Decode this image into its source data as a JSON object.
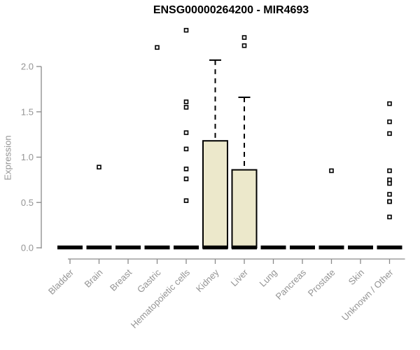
{
  "chart_data": {
    "type": "boxplot",
    "title": "ENSG00000264200 - MIR4693",
    "xlabel": "",
    "ylabel": "Expression",
    "ylim": [
      0,
      2.4
    ],
    "ytick_labels": [
      "0.0",
      "0.5",
      "1.0",
      "1.5",
      "2.0"
    ],
    "ytick_values": [
      0.0,
      0.5,
      1.0,
      1.5,
      2.0
    ],
    "grid": false,
    "legend": false,
    "categories": [
      "Bladder",
      "Brain",
      "Breast",
      "Gastric",
      "Hematopoietic cells",
      "Kidney",
      "Liver",
      "Lung",
      "Pancreas",
      "Prostate",
      "Skin",
      "Unknown / Other"
    ],
    "boxes": [
      {
        "category": "Bladder",
        "median": 0,
        "q1": 0,
        "q3": 0,
        "whisker_low": 0,
        "whisker_high": 0,
        "outliers": []
      },
      {
        "category": "Brain",
        "median": 0,
        "q1": 0,
        "q3": 0,
        "whisker_low": 0,
        "whisker_high": 0,
        "outliers": [
          0.89
        ]
      },
      {
        "category": "Breast",
        "median": 0,
        "q1": 0,
        "q3": 0,
        "whisker_low": 0,
        "whisker_high": 0,
        "outliers": []
      },
      {
        "category": "Gastric",
        "median": 0,
        "q1": 0,
        "q3": 0,
        "whisker_low": 0,
        "whisker_high": 0,
        "outliers": [
          2.21
        ]
      },
      {
        "category": "Hematopoietic cells",
        "median": 0,
        "q1": 0,
        "q3": 0,
        "whisker_low": 0,
        "whisker_high": 0,
        "outliers": [
          2.4,
          1.61,
          1.55,
          1.27,
          1.09,
          0.87,
          0.76,
          0.52
        ]
      },
      {
        "category": "Kidney",
        "median": 0,
        "q1": 0,
        "q3": 1.18,
        "whisker_low": 0,
        "whisker_high": 2.07,
        "outliers": []
      },
      {
        "category": "Liver",
        "median": 0,
        "q1": 0,
        "q3": 0.86,
        "whisker_low": 0,
        "whisker_high": 1.66,
        "outliers": [
          2.32,
          2.23
        ]
      },
      {
        "category": "Lung",
        "median": 0,
        "q1": 0,
        "q3": 0,
        "whisker_low": 0,
        "whisker_high": 0,
        "outliers": []
      },
      {
        "category": "Pancreas",
        "median": 0,
        "q1": 0,
        "q3": 0,
        "whisker_low": 0,
        "whisker_high": 0,
        "outliers": []
      },
      {
        "category": "Prostate",
        "median": 0,
        "q1": 0,
        "q3": 0,
        "whisker_low": 0,
        "whisker_high": 0,
        "outliers": [
          0.85
        ]
      },
      {
        "category": "Skin",
        "median": 0,
        "q1": 0,
        "q3": 0,
        "whisker_low": 0,
        "whisker_high": 0,
        "outliers": []
      },
      {
        "category": "Unknown / Other",
        "median": 0,
        "q1": 0,
        "q3": 0,
        "whisker_low": 0,
        "whisker_high": 0,
        "outliers": [
          1.59,
          1.39,
          1.26,
          0.85,
          0.75,
          0.71,
          0.59,
          0.51,
          0.51,
          0.34
        ]
      }
    ],
    "colors": {
      "box_fill": "#ece8cb",
      "box_stroke": "#000000",
      "median": "#000000",
      "whisker": "#000000",
      "outlier_stroke": "#000000",
      "outlier_fill": "#ffffff",
      "axis": "#8a8a8a",
      "tick_label": "#949494",
      "title": "#000000"
    }
  }
}
